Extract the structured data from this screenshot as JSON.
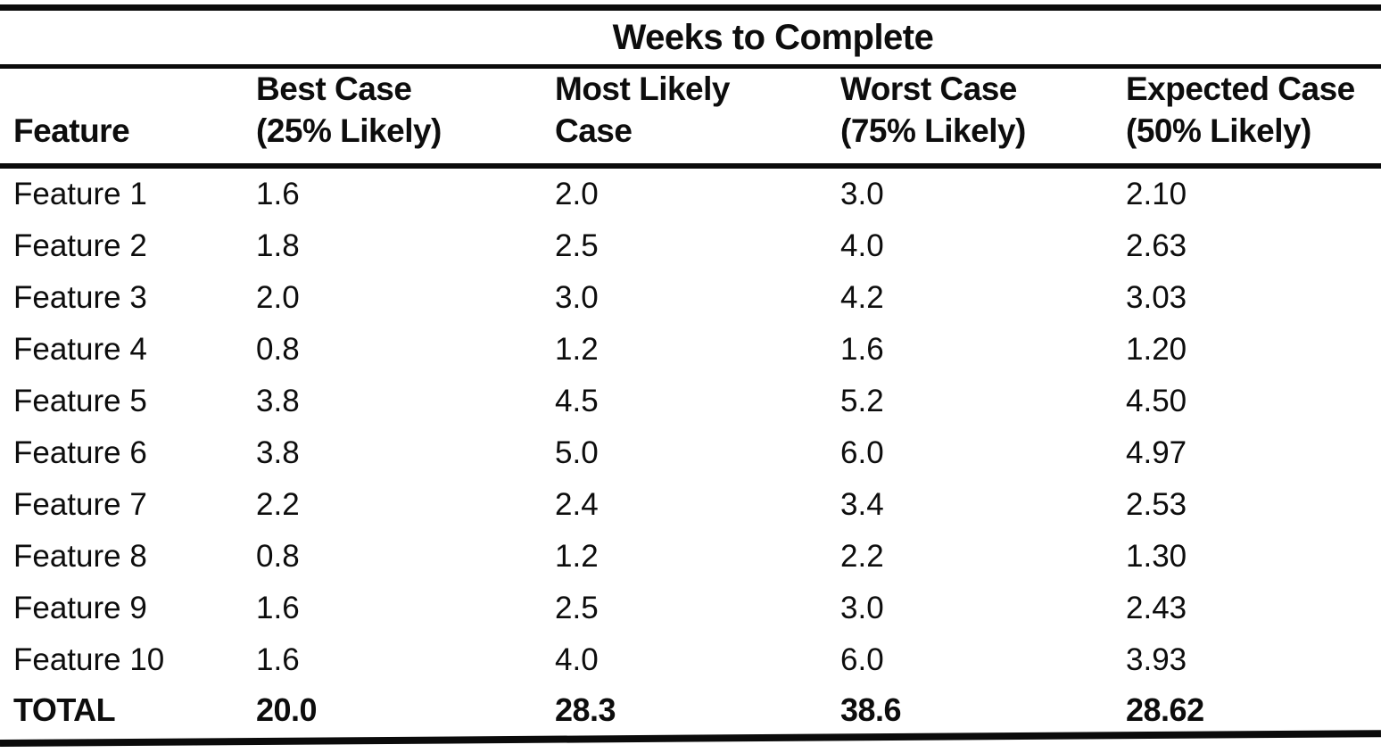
{
  "table": {
    "spanner": "Weeks to Complete",
    "columns": [
      {
        "line1": "Feature",
        "line2": ""
      },
      {
        "line1": "Best Case",
        "line2": "(25% Likely)"
      },
      {
        "line1": "Most Likely",
        "line2": "Case"
      },
      {
        "line1": "Worst Case",
        "line2": "(75% Likely)"
      },
      {
        "line1": "Expected Case",
        "line2": "(50% Likely)"
      }
    ],
    "rows": [
      {
        "feature": "Feature 1",
        "best": "1.6",
        "most": "2.0",
        "worst": "3.0",
        "expected": "2.10"
      },
      {
        "feature": "Feature 2",
        "best": "1.8",
        "most": "2.5",
        "worst": "4.0",
        "expected": "2.63"
      },
      {
        "feature": "Feature 3",
        "best": "2.0",
        "most": "3.0",
        "worst": "4.2",
        "expected": "3.03"
      },
      {
        "feature": "Feature 4",
        "best": "0.8",
        "most": "1.2",
        "worst": "1.6",
        "expected": "1.20"
      },
      {
        "feature": "Feature 5",
        "best": "3.8",
        "most": "4.5",
        "worst": "5.2",
        "expected": "4.50"
      },
      {
        "feature": "Feature 6",
        "best": "3.8",
        "most": "5.0",
        "worst": "6.0",
        "expected": "4.97"
      },
      {
        "feature": "Feature 7",
        "best": "2.2",
        "most": "2.4",
        "worst": "3.4",
        "expected": "2.53"
      },
      {
        "feature": "Feature 8",
        "best": "0.8",
        "most": "1.2",
        "worst": "2.2",
        "expected": "1.30"
      },
      {
        "feature": "Feature 9",
        "best": "1.6",
        "most": "2.5",
        "worst": "3.0",
        "expected": "2.43"
      },
      {
        "feature": "Feature 10",
        "best": "1.6",
        "most": "4.0",
        "worst": "6.0",
        "expected": "3.93"
      }
    ],
    "total": {
      "feature": "TOTAL",
      "best": "20.0",
      "most": "28.3",
      "worst": "38.6",
      "expected": "28.62"
    }
  },
  "colors": {
    "ink": "#0d0d0d",
    "paper": "#ffffff"
  }
}
